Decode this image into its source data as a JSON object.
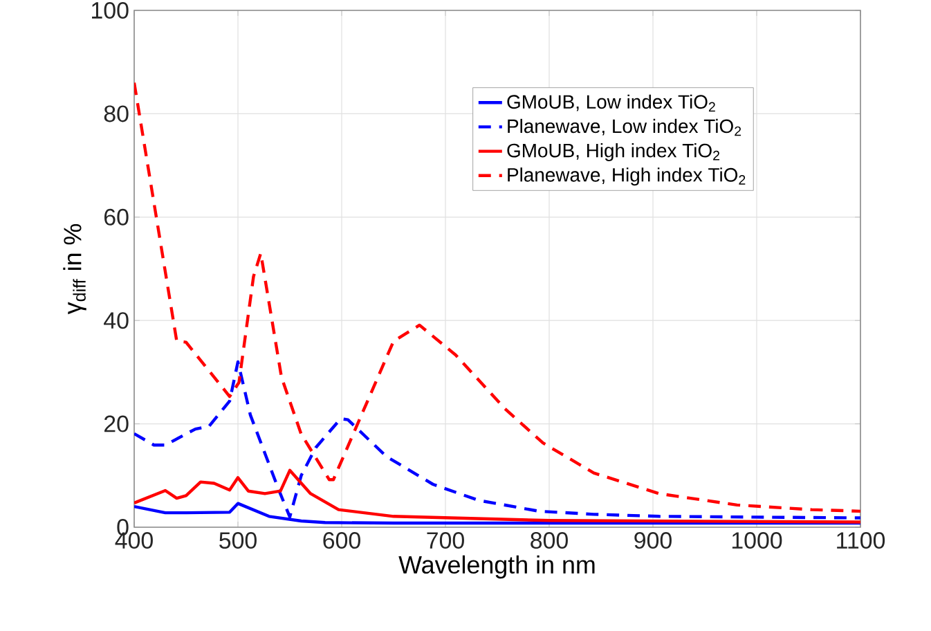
{
  "chart_data": {
    "type": "line",
    "xlabel": "Wavelength in nm",
    "ylabel": "γ$_{diff}$ in %",
    "xlim": [
      400,
      1100
    ],
    "ylim": [
      0,
      100
    ],
    "xticks": [
      400,
      500,
      600,
      700,
      800,
      900,
      1000,
      1100
    ],
    "yticks": [
      0,
      20,
      40,
      60,
      80,
      100
    ],
    "grid": true,
    "legend": "top right",
    "marker": "none",
    "series": [
      {
        "name": "GMoUB, Low index TiO$_{2}$",
        "color": "#0000ff",
        "line_style": "solid",
        "x": [
          400,
          430,
          450,
          492,
          500,
          530,
          561,
          584,
          650,
          800,
          1100
        ],
        "values": [
          4.0,
          2.8,
          2.8,
          2.9,
          4.6,
          2.1,
          1.2,
          0.9,
          0.8,
          0.8,
          0.8
        ]
      },
      {
        "name": "Planewave, Low index TiO$_{2}$",
        "color": "#0000ff",
        "line_style": "dashed",
        "x": [
          400,
          419,
          430,
          459,
          472,
          492,
          500,
          512,
          539,
          550,
          561,
          575,
          599,
          606,
          643,
          688,
          732,
          790,
          843,
          906,
          1100
        ],
        "values": [
          18.1,
          15.9,
          15.9,
          19,
          19.5,
          24.4,
          32,
          21.7,
          7.4,
          2,
          10,
          15.4,
          21,
          20.8,
          13.7,
          8.3,
          5.2,
          3.1,
          2.5,
          2.1,
          1.8
        ]
      },
      {
        "name": "GMoUB, High index TiO$_{2}$",
        "color": "#ff0000",
        "line_style": "solid",
        "x": [
          400,
          430,
          441,
          450,
          464,
          477,
          492,
          500,
          510,
          526,
          541,
          550,
          570,
          597,
          650,
          800,
          1100
        ],
        "values": [
          4.7,
          7.1,
          5.6,
          6.1,
          8.75,
          8.5,
          7.2,
          9.6,
          7,
          6.5,
          7,
          11,
          6.5,
          3.4,
          2.1,
          1.3,
          1.0
        ]
      },
      {
        "name": "Planewave, High index TiO$_{2}$",
        "color": "#ff0000",
        "line_style": "dashed",
        "x": [
          400,
          441,
          450,
          492,
          501,
          515,
          522,
          542,
          561,
          588,
          592,
          650,
          675,
          710,
          757,
          794,
          843,
          906,
          981,
          1053,
          1100
        ],
        "values": [
          86,
          36,
          35.8,
          25.3,
          28,
          48.5,
          53,
          29,
          18,
          9.2,
          9.2,
          36,
          39.1,
          33.3,
          23,
          16.3,
          10.5,
          6.5,
          4.3,
          3.4,
          3.1
        ]
      }
    ]
  }
}
